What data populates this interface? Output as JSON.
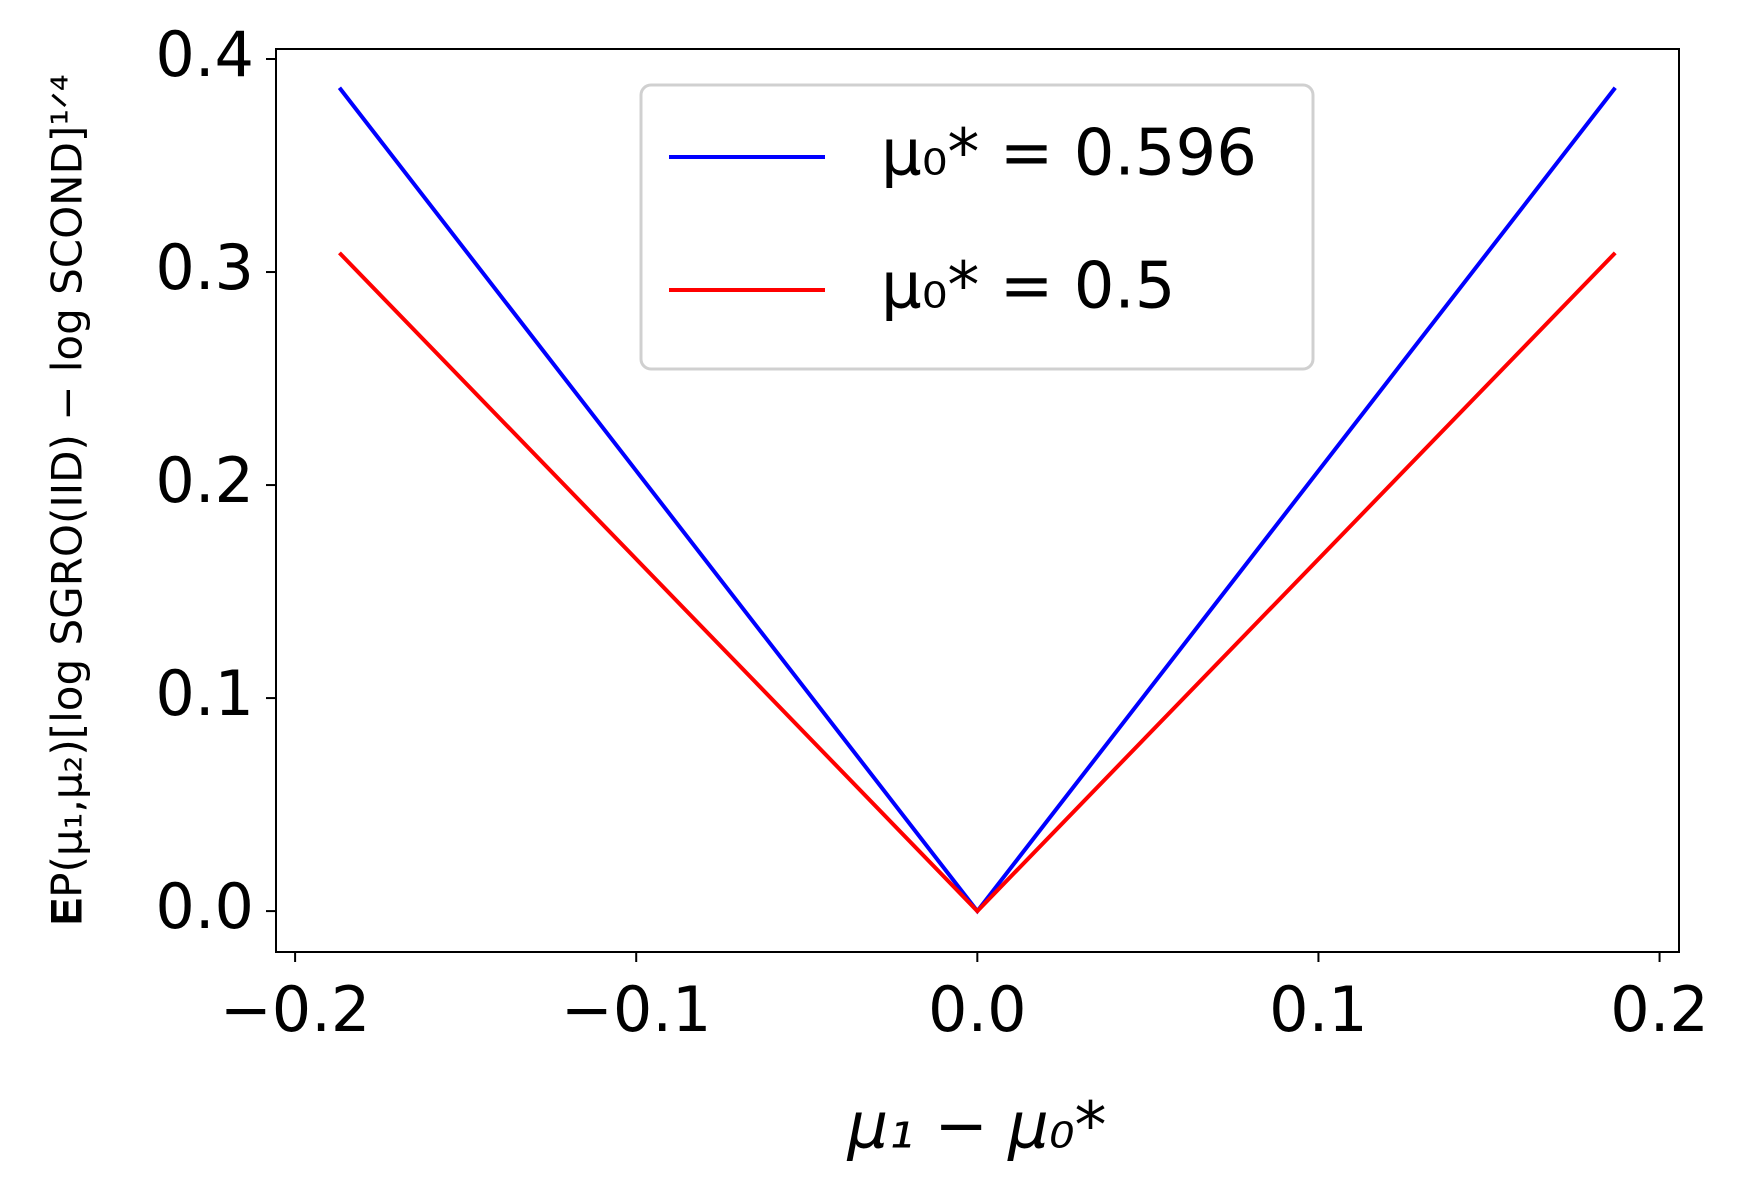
{
  "chart_data": {
    "type": "line",
    "x_label": "μ₁ − μ₀*",
    "y_label": "𝐄P(μ₁,μ₂)[log SGRO(IID) − log SCOND]¹ᐟ⁴",
    "x": [
      -0.187,
      0,
      0.187
    ],
    "series": [
      {
        "name": "μ₀* = 0.596",
        "color": "#0000ff",
        "values": [
          0.3865,
          0,
          0.3865
        ]
      },
      {
        "name": "μ₀* = 0.5",
        "color": "#ff0000",
        "values": [
          0.309,
          0,
          0.309
        ]
      }
    ],
    "xlim": [
      -0.2056,
      0.2057
    ],
    "ylim": [
      -0.0192,
      0.4047
    ],
    "xticks": [
      {
        "value": -0.2,
        "label": "−0.2"
      },
      {
        "value": -0.1,
        "label": "−0.1"
      },
      {
        "value": 0,
        "label": "0.0"
      },
      0.1,
      0.2
    ],
    "yticks": [
      {
        "value": 0,
        "label": "0.0"
      },
      0.1,
      0.2,
      0.3,
      0.4
    ],
    "grid": false,
    "legend": "upper center"
  }
}
